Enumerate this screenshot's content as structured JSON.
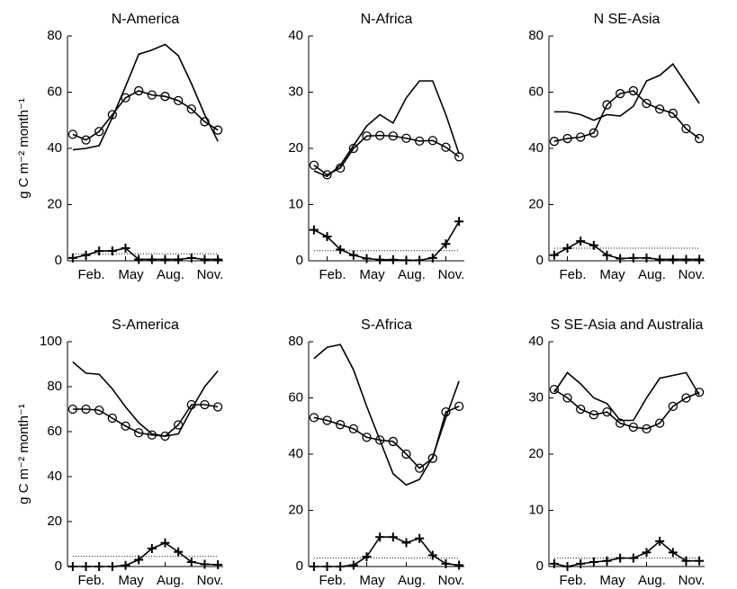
{
  "chart_data": [
    {
      "type": "line",
      "title": "N-America",
      "ylabel": "g C m⁻² month⁻¹",
      "x": [
        1,
        2,
        3,
        4,
        5,
        6,
        7,
        8,
        9,
        10,
        11,
        12
      ],
      "xlim": [
        0.6,
        12.4
      ],
      "xticks": [
        {
          "value": 2,
          "label": "Feb."
        },
        {
          "value": 5,
          "label": "May"
        },
        {
          "value": 8,
          "label": "Aug."
        },
        {
          "value": 11,
          "label": "Nov."
        }
      ],
      "ylim": [
        0,
        80
      ],
      "yticks": [
        0,
        20,
        40,
        60,
        80
      ],
      "reference_line": 2.5,
      "series": [
        {
          "marker": "none",
          "color": "#000000",
          "values": [
            39.5,
            40,
            41,
            51,
            62,
            73.5,
            75,
            77,
            73,
            63,
            52,
            42.5
          ]
        },
        {
          "marker": "circle",
          "color": "#000000",
          "values": [
            45,
            43,
            46,
            52,
            58,
            60.5,
            59,
            58.5,
            57,
            54,
            49.5,
            46.5
          ]
        },
        {
          "marker": "plus",
          "color": "#000000",
          "values": [
            1,
            2,
            3.5,
            3.5,
            4.5,
            0.5,
            0.5,
            0.5,
            0.5,
            1,
            0.5,
            0.5
          ]
        }
      ]
    },
    {
      "type": "line",
      "title": "N-Africa",
      "x": [
        1,
        2,
        3,
        4,
        5,
        6,
        7,
        8,
        9,
        10,
        11,
        12
      ],
      "xlim": [
        0.6,
        12.4
      ],
      "xticks": [
        {
          "value": 2,
          "label": "Feb."
        },
        {
          "value": 5,
          "label": "May"
        },
        {
          "value": 8,
          "label": "Aug."
        },
        {
          "value": 11,
          "label": "Nov."
        }
      ],
      "ylim": [
        0,
        40
      ],
      "yticks": [
        0,
        10,
        20,
        30,
        40
      ],
      "reference_line": 1.8,
      "series": [
        {
          "marker": "none",
          "color": "#000000",
          "values": [
            16,
            15,
            17,
            20.5,
            24,
            26,
            24.5,
            29,
            32,
            32,
            26,
            19
          ]
        },
        {
          "marker": "circle",
          "color": "#000000",
          "values": [
            17,
            15.3,
            16.5,
            20,
            22.2,
            22.3,
            22.2,
            21.8,
            21.3,
            21.4,
            20.2,
            18.5
          ]
        },
        {
          "marker": "plus",
          "color": "#000000",
          "values": [
            5.5,
            4.3,
            2,
            1,
            0.4,
            0.2,
            0.2,
            0.1,
            0.1,
            0.5,
            3,
            7
          ]
        }
      ]
    },
    {
      "type": "line",
      "title": "N SE-Asia",
      "x": [
        1,
        2,
        3,
        4,
        5,
        6,
        7,
        8,
        9,
        10,
        11,
        12
      ],
      "xlim": [
        0.6,
        12.4
      ],
      "xticks": [
        {
          "value": 2,
          "label": "Feb."
        },
        {
          "value": 5,
          "label": "May"
        },
        {
          "value": 8,
          "label": "Aug."
        },
        {
          "value": 11,
          "label": "Nov."
        }
      ],
      "ylim": [
        0,
        80
      ],
      "yticks": [
        0,
        20,
        40,
        60,
        80
      ],
      "reference_line": 4.5,
      "series": [
        {
          "marker": "none",
          "color": "#000000",
          "values": [
            53,
            53,
            52,
            50,
            52,
            51.5,
            55,
            64,
            66,
            70,
            63,
            56
          ]
        },
        {
          "marker": "circle",
          "color": "#000000",
          "values": [
            42.5,
            43.5,
            44,
            45.5,
            55.5,
            59.5,
            60.5,
            56,
            54,
            52.5,
            47,
            43.5
          ]
        },
        {
          "marker": "plus",
          "color": "#000000",
          "values": [
            2,
            4.5,
            7,
            5.5,
            2,
            0.8,
            1,
            1,
            0.5,
            0.5,
            0.5,
            0.5
          ]
        }
      ]
    },
    {
      "type": "line",
      "title": "S-America",
      "ylabel": "g C m⁻² month⁻¹",
      "x": [
        1,
        2,
        3,
        4,
        5,
        6,
        7,
        8,
        9,
        10,
        11,
        12
      ],
      "xlim": [
        0.6,
        12.4
      ],
      "xticks": [
        {
          "value": 2,
          "label": "Feb."
        },
        {
          "value": 5,
          "label": "May"
        },
        {
          "value": 8,
          "label": "Aug."
        },
        {
          "value": 11,
          "label": "Nov."
        }
      ],
      "ylim": [
        0,
        100
      ],
      "yticks": [
        0,
        20,
        40,
        60,
        80,
        100
      ],
      "reference_line": 4.5,
      "series": [
        {
          "marker": "none",
          "color": "#000000",
          "values": [
            91,
            86,
            85.5,
            79,
            71,
            64,
            59,
            58,
            59,
            70,
            80,
            87
          ]
        },
        {
          "marker": "circle",
          "color": "#000000",
          "values": [
            70,
            70,
            69.5,
            66,
            62.5,
            59.5,
            58.5,
            58,
            63,
            72,
            72,
            71
          ]
        },
        {
          "marker": "plus",
          "color": "#000000",
          "values": [
            0,
            0,
            0,
            0,
            0.5,
            3,
            8,
            10.5,
            6.5,
            2,
            1,
            0.8
          ]
        }
      ]
    },
    {
      "type": "line",
      "title": "S-Africa",
      "x": [
        1,
        2,
        3,
        4,
        5,
        6,
        7,
        8,
        9,
        10,
        11,
        12
      ],
      "xlim": [
        0.6,
        12.4
      ],
      "xticks": [
        {
          "value": 2,
          "label": "Feb."
        },
        {
          "value": 5,
          "label": "May"
        },
        {
          "value": 8,
          "label": "Aug."
        },
        {
          "value": 11,
          "label": "Nov."
        }
      ],
      "ylim": [
        0,
        80
      ],
      "yticks": [
        0,
        20,
        40,
        60,
        80
      ],
      "reference_line": 3,
      "series": [
        {
          "marker": "none",
          "color": "#000000",
          "values": [
            74,
            78,
            79,
            70,
            57,
            45,
            33,
            29,
            31,
            39,
            53,
            66
          ]
        },
        {
          "marker": "circle",
          "color": "#000000",
          "values": [
            53,
            52,
            50.5,
            49,
            46,
            45,
            44.5,
            40,
            35,
            38.5,
            55,
            57
          ]
        },
        {
          "marker": "plus",
          "color": "#000000",
          "values": [
            0,
            0,
            0,
            0.5,
            3.5,
            10.5,
            10.5,
            8.5,
            10,
            4,
            1,
            0.5
          ]
        }
      ]
    },
    {
      "type": "line",
      "title": "S SE-Asia and Australia",
      "x": [
        1,
        2,
        3,
        4,
        5,
        6,
        7,
        8,
        9,
        10,
        11,
        12
      ],
      "xlim": [
        0.6,
        12.4
      ],
      "xticks": [
        {
          "value": 2,
          "label": "Feb."
        },
        {
          "value": 5,
          "label": "May"
        },
        {
          "value": 8,
          "label": "Aug."
        },
        {
          "value": 11,
          "label": "Nov."
        }
      ],
      "ylim": [
        0,
        40
      ],
      "yticks": [
        0,
        10,
        20,
        30,
        40
      ],
      "reference_line": 1.5,
      "series": [
        {
          "marker": "none",
          "color": "#000000",
          "values": [
            31,
            34.5,
            32.5,
            30,
            29,
            26,
            26,
            30,
            33.5,
            34,
            34.5,
            30.5
          ]
        },
        {
          "marker": "circle",
          "color": "#000000",
          "values": [
            31.5,
            30,
            28,
            27,
            27.5,
            25.5,
            24.8,
            24.5,
            25.5,
            28.5,
            30,
            31
          ]
        },
        {
          "marker": "plus",
          "color": "#000000",
          "values": [
            0.5,
            0,
            0.5,
            0.8,
            1,
            1.5,
            1.5,
            2.5,
            4.5,
            2.5,
            1,
            1
          ]
        }
      ]
    }
  ]
}
